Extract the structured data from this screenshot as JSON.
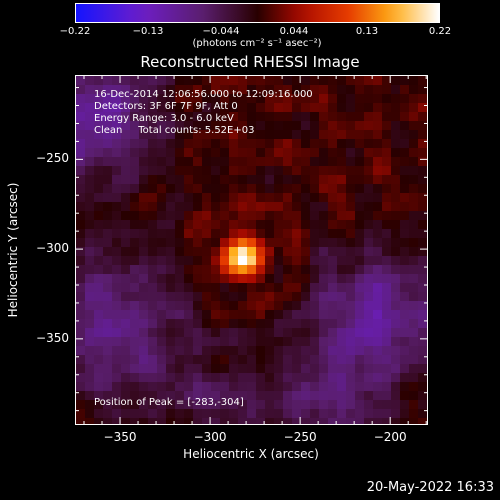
{
  "colorbar": {
    "tick_labels": [
      "-0.22",
      "-0.13",
      "-0.044",
      "0.044",
      "0.13",
      "0.22"
    ],
    "units": "(photons cm⁻² s⁻¹ asec⁻²)",
    "range": [
      -0.22,
      0.22
    ],
    "colormap": "IDL red temperature (blue-purple negative, red-yellow-white positive)"
  },
  "title": "Reconstructed RHESSI Image",
  "info": {
    "time": "16-Dec-2014 12:06:56.000 to 12:09:16.000",
    "detectors": "Detectors: 3F 6F 7F 9F, Att 0",
    "energy": "Energy Range: 3.0 - 6.0 keV",
    "clean": "Clean     Total counts: 5.52E+03"
  },
  "peak_label": "Position of Peak = [-283,-304]",
  "timestamp": "20-May-2022 16:33",
  "chart_data": {
    "type": "heatmap",
    "title": "Reconstructed RHESSI Image",
    "xlabel": "Heliocentric X (arcsec)",
    "ylabel": "Heliocentric Y (arcsec)",
    "xlim": [
      -375,
      -179
    ],
    "ylim": [
      -398,
      -203
    ],
    "x_ticks": [
      -350,
      -300,
      -250,
      -200
    ],
    "y_ticks": [
      -250,
      -300,
      -350
    ],
    "x_tick_labels": [
      "−350",
      "−300",
      "−250",
      "−200"
    ],
    "y_tick_labels": [
      "−250",
      "−300",
      "−350"
    ],
    "peak": {
      "x": -283,
      "y": -304,
      "value": 0.22
    },
    "value_range": [
      -0.22,
      0.22
    ],
    "grid": false
  }
}
